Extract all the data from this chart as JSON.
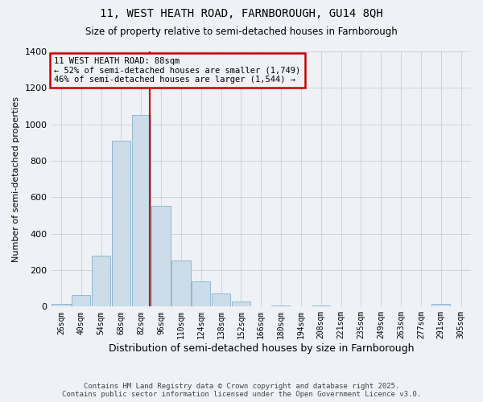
{
  "title1": "11, WEST HEATH ROAD, FARNBOROUGH, GU14 8QH",
  "title2": "Size of property relative to semi-detached houses in Farnborough",
  "xlabel": "Distribution of semi-detached houses by size in Farnborough",
  "ylabel": "Number of semi-detached properties",
  "footer1": "Contains HM Land Registry data © Crown copyright and database right 2025.",
  "footer2": "Contains public sector information licensed under the Open Government Licence v3.0.",
  "bar_color": "#ccdce8",
  "bar_edge_color": "#90b8d0",
  "grid_color": "#c8d0d8",
  "annotation_box_color": "#cc0000",
  "property_line_color": "#cc0000",
  "property_sqm": 88,
  "annotation_title": "11 WEST HEATH ROAD: 88sqm",
  "annotation_line2": "← 52% of semi-detached houses are smaller (1,749)",
  "annotation_line3": "46% of semi-detached houses are larger (1,544) →",
  "bin_edges": [
    19,
    33,
    47,
    61,
    75,
    89,
    103,
    117,
    131,
    145,
    159,
    173,
    187,
    201,
    215,
    229,
    243,
    257,
    271,
    285,
    299,
    313
  ],
  "bin_labels": [
    "26sqm",
    "40sqm",
    "54sqm",
    "68sqm",
    "82sqm",
    "96sqm",
    "110sqm",
    "124sqm",
    "138sqm",
    "152sqm",
    "166sqm",
    "180sqm",
    "194sqm",
    "208sqm",
    "221sqm",
    "235sqm",
    "249sqm",
    "263sqm",
    "277sqm",
    "291sqm",
    "305sqm"
  ],
  "bar_heights": [
    15,
    65,
    280,
    910,
    1050,
    555,
    255,
    140,
    70,
    30,
    0,
    5,
    0,
    5,
    0,
    0,
    0,
    0,
    0,
    15,
    0
  ],
  "ylim": [
    0,
    1400
  ],
  "yticks": [
    0,
    200,
    400,
    600,
    800,
    1000,
    1200,
    1400
  ],
  "background_color": "#eef2f6"
}
